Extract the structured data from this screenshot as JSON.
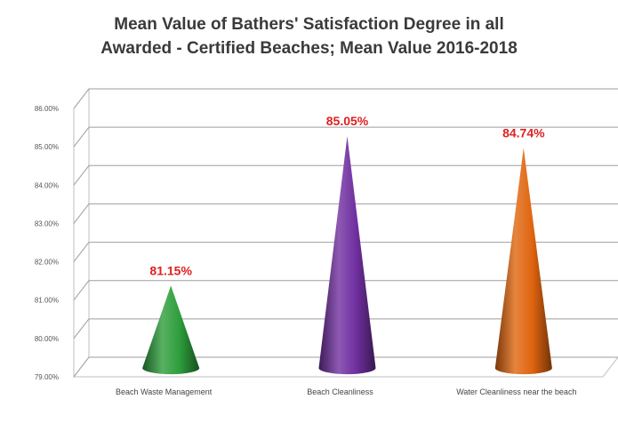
{
  "chart_data": {
    "type": "bar",
    "title_lines": [
      "Mean Value of Bathers' Satisfaction Degree in all",
      "Awarded - Certified Beaches; Mean Value 2016-2018"
    ],
    "categories": [
      "Beach Waste Management",
      "Beach Cleanliness",
      "Water Cleanliness near the beach"
    ],
    "values": [
      81.15,
      85.05,
      84.74
    ],
    "data_labels": [
      "81.15%",
      "85.05%",
      "84.74%"
    ],
    "colors": [
      "#2e9e3c",
      "#7030a0",
      "#e0650f"
    ],
    "label_color": "#e02020",
    "shape": "cone",
    "ylim": [
      79,
      86
    ],
    "yticks": [
      "79.00%",
      "80.00%",
      "81.00%",
      "82.00%",
      "83.00%",
      "84.00%",
      "85.00%",
      "86.00%"
    ],
    "ytick_values": [
      79,
      80,
      81,
      82,
      83,
      84,
      85,
      86
    ],
    "grid": true,
    "legend": "none"
  }
}
